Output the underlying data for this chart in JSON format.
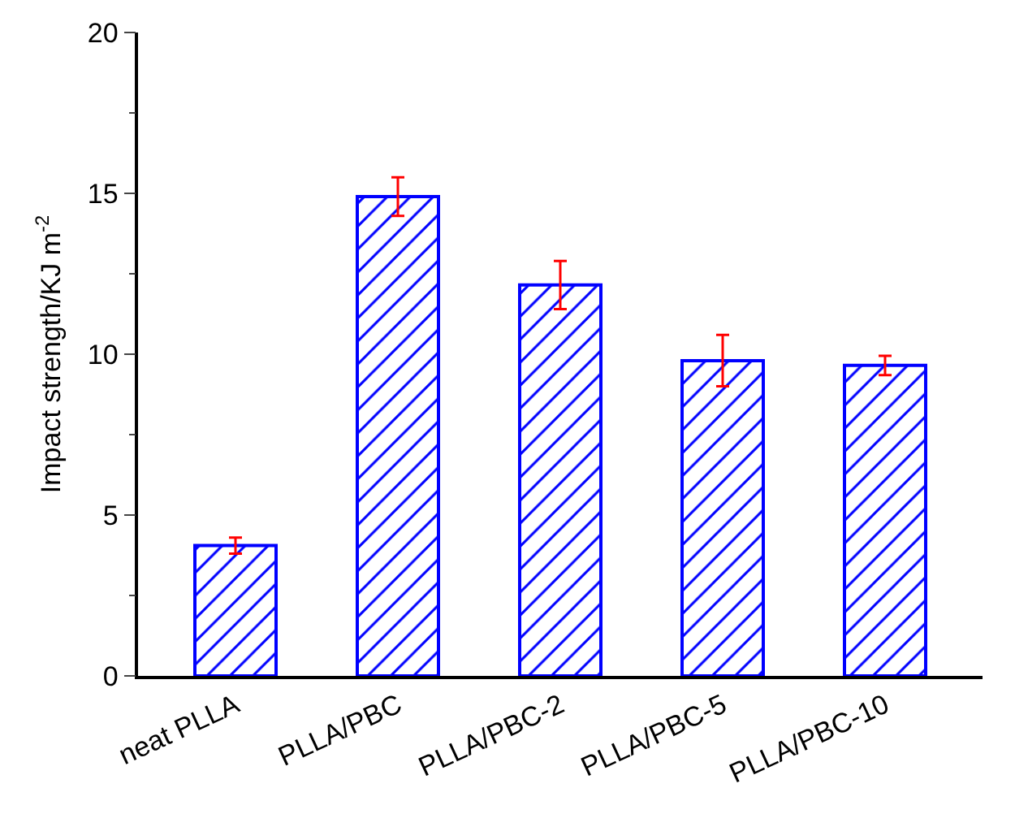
{
  "chart_data": {
    "type": "bar",
    "ylabel": "Impact strength/KJ m$^{-2}$",
    "categories": [
      "neat PLLA",
      "PLLA/PBC",
      "PLLA/PBC-2",
      "PLLA/PBC-5",
      "PLLA/PBC-10"
    ],
    "values": [
      4.05,
      14.9,
      12.15,
      9.8,
      9.65
    ],
    "errors": [
      0.25,
      0.6,
      0.75,
      0.8,
      0.3
    ],
    "color": "#0000ff",
    "ylim": [
      0,
      20
    ],
    "yticks": [
      0,
      5,
      10,
      15,
      20
    ]
  }
}
